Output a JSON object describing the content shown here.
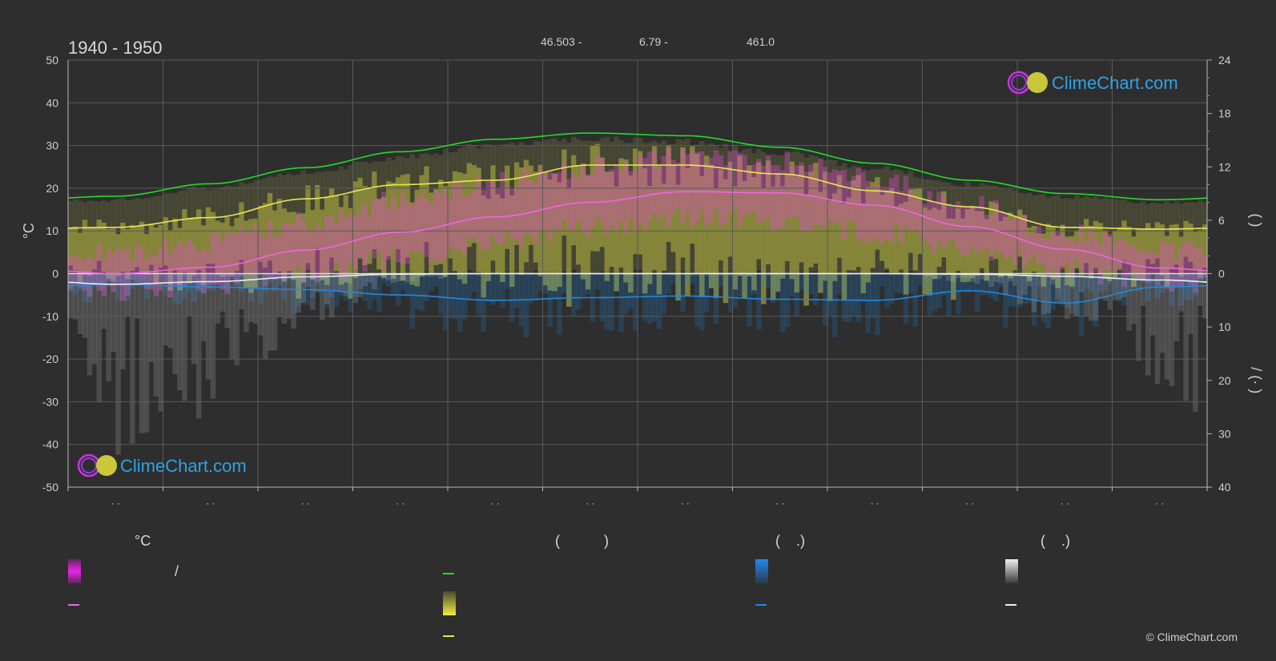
{
  "header": {
    "period": "1940 - 1950",
    "latitude": "46.503 -",
    "longitude": "6.79 -",
    "elevation": "461.0"
  },
  "logo_text": "ClimeChart.com",
  "copyright": "© ClimeChart.com",
  "legend": {
    "temp_head": "°C",
    "sun_head": "(           )",
    "rain_head": "(    .)",
    "snow_head": "(    .)",
    "slash": "/"
  },
  "colors": {
    "background": "#2e2e2e",
    "grid": "#5a5a5a",
    "daylight": "#22dd22",
    "sunshine": "#e8e850",
    "avg_temp": "#ee66dd",
    "temp_band": "#ee44dd",
    "rain": "#2288dd",
    "snow": "#dddddd",
    "logo": "#2fa3e6"
  },
  "chart_data": {
    "type": "area",
    "months": [
      "· ·",
      "· ·",
      "· ·",
      "· ·",
      "· ·",
      "· ·",
      "· ·",
      "· ·",
      "· ·",
      "· ·",
      "· ·",
      "· ·"
    ],
    "y_left": {
      "label": "°C",
      "ticks": [
        50,
        40,
        30,
        20,
        10,
        0,
        -10,
        -20,
        -30,
        -40,
        -50
      ],
      "range": [
        -50,
        50
      ]
    },
    "y_right_top": {
      "label": "(    )",
      "ticks": [
        24,
        18,
        12,
        6,
        0
      ],
      "range": [
        0,
        24
      ]
    },
    "y_right_bottom": {
      "label": "/  (·  )",
      "ticks": [
        10,
        20,
        30,
        40
      ],
      "range": [
        0,
        40
      ]
    },
    "daylight_hours": [
      8.7,
      10.1,
      11.9,
      13.7,
      15.1,
      15.8,
      15.5,
      14.2,
      12.4,
      10.5,
      9.0,
      8.3
    ],
    "sunshine_hours": [
      5.2,
      6.3,
      8.4,
      10.0,
      10.5,
      12.2,
      12.2,
      11.2,
      9.3,
      7.5,
      5.2,
      5.0
    ],
    "avg_temp_c": [
      0.0,
      1.5,
      5.5,
      9.7,
      13.3,
      16.7,
      19.2,
      18.9,
      16.0,
      11.0,
      5.7,
      1.3
    ],
    "temp_max_c": [
      5.0,
      7.5,
      12.0,
      17.0,
      21.5,
      25.0,
      27.5,
      26.5,
      22.0,
      16.0,
      9.5,
      5.5
    ],
    "temp_min_c": [
      -4.0,
      -3.0,
      0.0,
      3.5,
      7.5,
      11.0,
      13.0,
      12.5,
      9.5,
      5.5,
      1.0,
      -2.5
    ],
    "rain_mm_day": [
      2.0,
      2.5,
      3.0,
      4.0,
      5.0,
      4.5,
      4.2,
      4.8,
      5.0,
      3.2,
      5.5,
      2.5
    ],
    "snow_mm_day": [
      2.0,
      1.5,
      0.6,
      0.1,
      0.0,
      0.0,
      0.0,
      0.0,
      0.0,
      0.1,
      0.5,
      1.2
    ],
    "grid": true
  }
}
